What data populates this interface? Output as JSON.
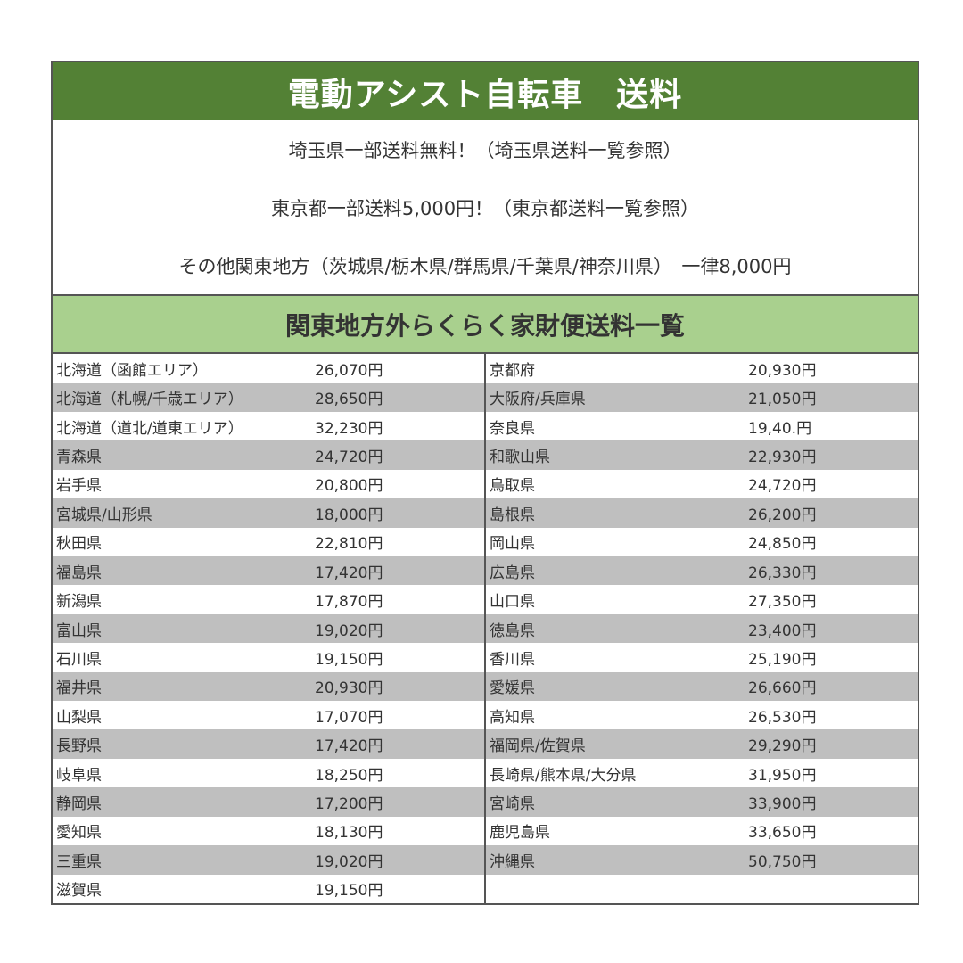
{
  "title": "電動アシスト自転車　送料",
  "info": [
    "埼玉県一部送料無料！（埼玉県送料一覧参照）",
    "東京都一部送料5,000円！（東京都送料一覧参照）",
    "その他関東地方（茨城県/栃木県/群馬県/千葉県/神奈川県）　一律8,000円"
  ],
  "subtitle": "関東地方外らくらく家財便送料一覧",
  "left": [
    {
      "name": "北海道（函館エリア）",
      "price": "26,070円"
    },
    {
      "name": "北海道（札幌/千歳エリア）",
      "price": "28,650円"
    },
    {
      "name": "北海道（道北/道東エリア）",
      "price": "32,230円"
    },
    {
      "name": "青森県",
      "price": "24,720円"
    },
    {
      "name": "岩手県",
      "price": "20,800円"
    },
    {
      "name": "宮城県/山形県",
      "price": "18,000円"
    },
    {
      "name": "秋田県",
      "price": "22,810円"
    },
    {
      "name": "福島県",
      "price": "17,420円"
    },
    {
      "name": "新潟県",
      "price": "17,870円"
    },
    {
      "name": "富山県",
      "price": "19,020円"
    },
    {
      "name": "石川県",
      "price": "19,150円"
    },
    {
      "name": "福井県",
      "price": "20,930円"
    },
    {
      "name": "山梨県",
      "price": "17,070円"
    },
    {
      "name": "長野県",
      "price": "17,420円"
    },
    {
      "name": "岐阜県",
      "price": "18,250円"
    },
    {
      "name": "静岡県",
      "price": "17,200円"
    },
    {
      "name": "愛知県",
      "price": "18,130円"
    },
    {
      "name": "三重県",
      "price": "19,020円"
    },
    {
      "name": "滋賀県",
      "price": "19,150円"
    }
  ],
  "right": [
    {
      "name": "京都府",
      "price": "20,930円"
    },
    {
      "name": "大阪府/兵庫県",
      "price": "21,050円"
    },
    {
      "name": "奈良県",
      "price": "19,40.円"
    },
    {
      "name": "和歌山県",
      "price": "22,930円"
    },
    {
      "name": "鳥取県",
      "price": "24,720円"
    },
    {
      "name": "島根県",
      "price": "26,200円"
    },
    {
      "name": "岡山県",
      "price": "24,850円"
    },
    {
      "name": "広島県",
      "price": "26,330円"
    },
    {
      "name": "山口県",
      "price": "27,350円"
    },
    {
      "name": "徳島県",
      "price": "23,400円"
    },
    {
      "name": "香川県",
      "price": "25,190円"
    },
    {
      "name": "愛媛県",
      "price": "26,660円"
    },
    {
      "name": "高知県",
      "price": "26,530円"
    },
    {
      "name": "福岡県/佐賀県",
      "price": "29,290円"
    },
    {
      "name": "長崎県/熊本県/大分県",
      "price": "31,950円"
    },
    {
      "name": "宮崎県",
      "price": "33,900円"
    },
    {
      "name": "鹿児島県",
      "price": "33,650円"
    },
    {
      "name": "沖縄県",
      "price": "50,750円"
    },
    {
      "name": "",
      "price": ""
    }
  ]
}
